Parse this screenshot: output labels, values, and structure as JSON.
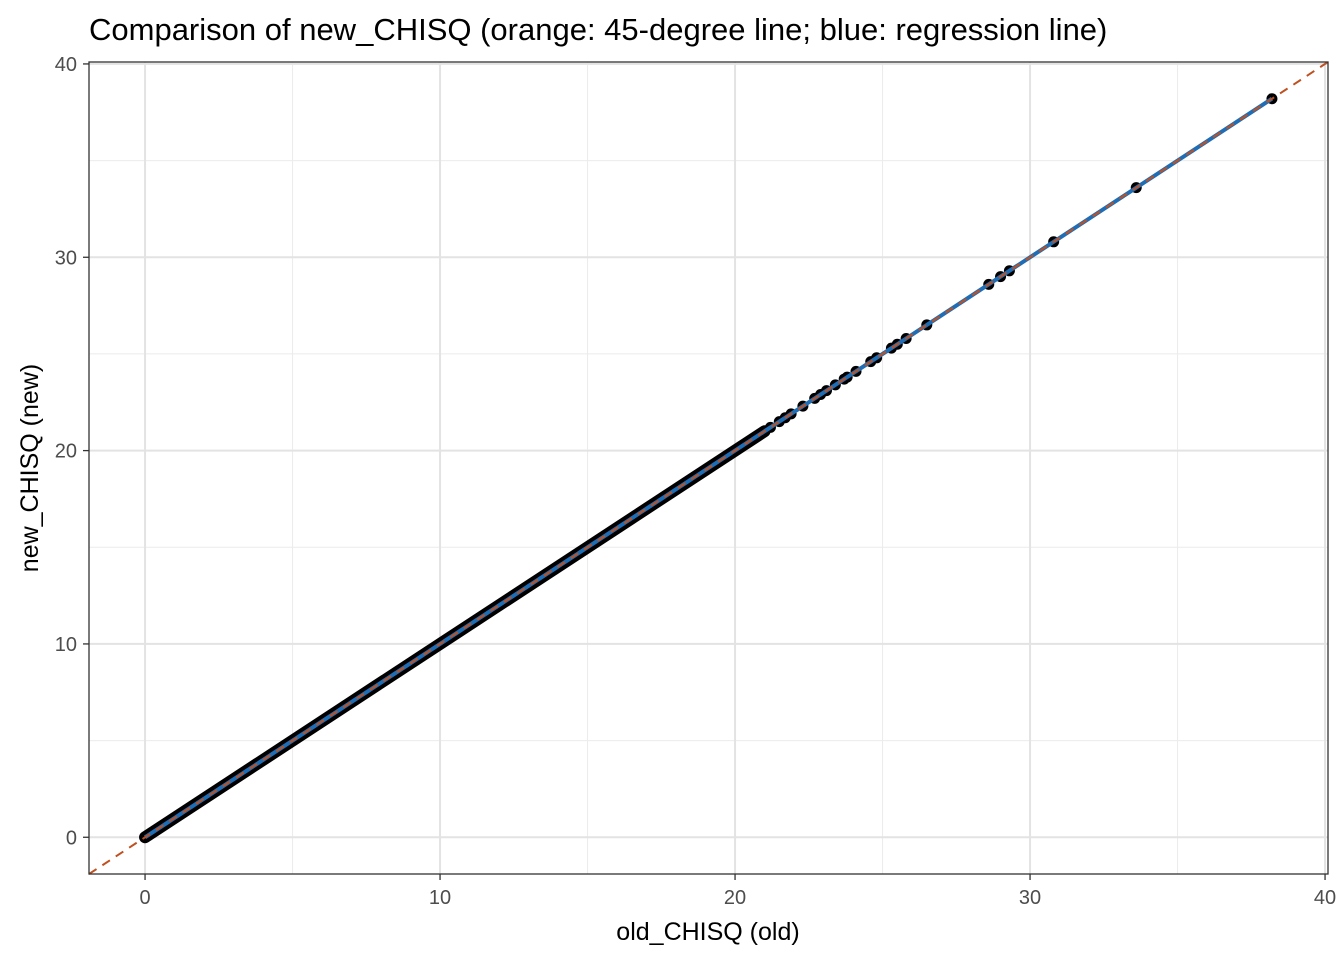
{
  "chart_data": {
    "type": "scatter",
    "title": "Comparison of new_CHISQ (orange: 45-degree line; blue: regression line)",
    "xlabel": "old_CHISQ (old)",
    "ylabel": "new_CHISQ (new)",
    "xlim": [
      -1.9,
      40.1
    ],
    "ylim": [
      -1.9,
      40.1
    ],
    "x_ticks": [
      0,
      10,
      20,
      30,
      40
    ],
    "y_ticks": [
      0,
      10,
      20,
      30,
      40
    ],
    "x_tick_labels": [
      "0",
      "10",
      "20",
      "30",
      "40"
    ],
    "y_tick_labels": [
      "0",
      "10",
      "20",
      "30",
      "40"
    ],
    "grid": true,
    "dense_range": [
      0,
      21
    ],
    "points": [
      [
        21.2,
        21.2
      ],
      [
        21.5,
        21.5
      ],
      [
        21.7,
        21.7
      ],
      [
        21.9,
        21.9
      ],
      [
        22.3,
        22.3
      ],
      [
        22.7,
        22.7
      ],
      [
        22.9,
        22.9
      ],
      [
        23.1,
        23.1
      ],
      [
        23.4,
        23.4
      ],
      [
        23.7,
        23.7
      ],
      [
        23.8,
        23.8
      ],
      [
        24.1,
        24.1
      ],
      [
        24.6,
        24.6
      ],
      [
        24.8,
        24.8
      ],
      [
        25.3,
        25.3
      ],
      [
        25.5,
        25.5
      ],
      [
        25.8,
        25.8
      ],
      [
        26.5,
        26.5
      ],
      [
        28.6,
        28.6
      ],
      [
        29.0,
        29.0
      ],
      [
        29.3,
        29.3
      ],
      [
        30.8,
        30.8
      ],
      [
        33.6,
        33.6
      ],
      [
        38.2,
        38.2
      ]
    ],
    "reference_line": {
      "slope": 1,
      "intercept": 0,
      "color": "#c0501f",
      "style": "dashed"
    },
    "regression_line": {
      "slope": 1,
      "intercept": 0,
      "x_range": [
        0,
        38.2
      ],
      "color": "#1f6db5"
    },
    "point_color": "#000000"
  }
}
